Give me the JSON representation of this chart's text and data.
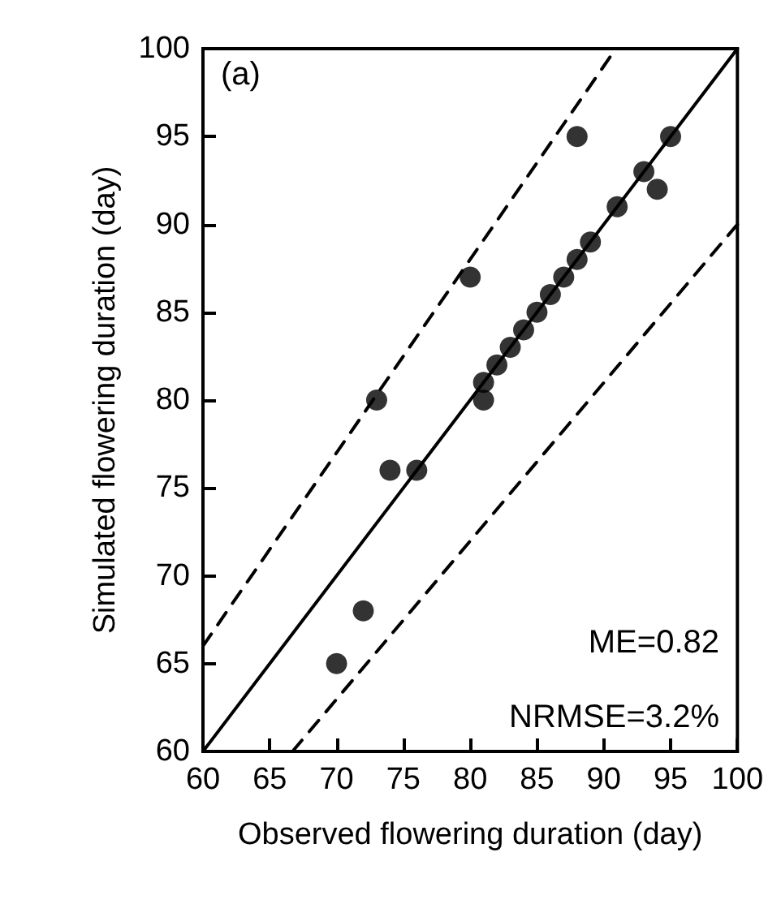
{
  "chart_data": {
    "type": "scatter",
    "xlabel": "Observed flowering duration (day)",
    "ylabel": "Simulated flowering duration (day)",
    "xlim": [
      60,
      100
    ],
    "ylim": [
      60,
      100
    ],
    "xticks": [
      60,
      65,
      70,
      75,
      80,
      85,
      90,
      95,
      100
    ],
    "yticks": [
      60,
      65,
      70,
      75,
      80,
      85,
      90,
      95,
      100
    ],
    "grid": false,
    "marker": "circle",
    "annotations": [
      "(a)",
      "ME=0.82",
      "NRMSE=3.2%"
    ],
    "series": [
      {
        "color": "#000000",
        "x": [
          70,
          72,
          74,
          76,
          73,
          80,
          81,
          81,
          82,
          83,
          84,
          85,
          86,
          87,
          88,
          88,
          89,
          91,
          93,
          94,
          95
        ],
        "values": [
          65,
          68,
          76,
          76,
          80,
          87,
          80,
          81,
          82,
          83,
          84,
          85,
          86,
          87,
          88,
          95,
          89,
          91,
          93,
          92,
          95
        ]
      },
      {
        "type": "line",
        "color": "#000000",
        "line_style": "solid",
        "marker": "none",
        "x": [
          60,
          100
        ],
        "values": [
          60,
          100
        ]
      },
      {
        "type": "line",
        "color": "#000000",
        "line_style": "dashed",
        "marker": "none",
        "x": [
          60,
          90.9
        ],
        "values": [
          66,
          100
        ]
      },
      {
        "type": "line",
        "color": "#000000",
        "line_style": "dashed",
        "marker": "none",
        "x": [
          66.7,
          100
        ],
        "values": [
          60,
          90
        ]
      }
    ]
  }
}
